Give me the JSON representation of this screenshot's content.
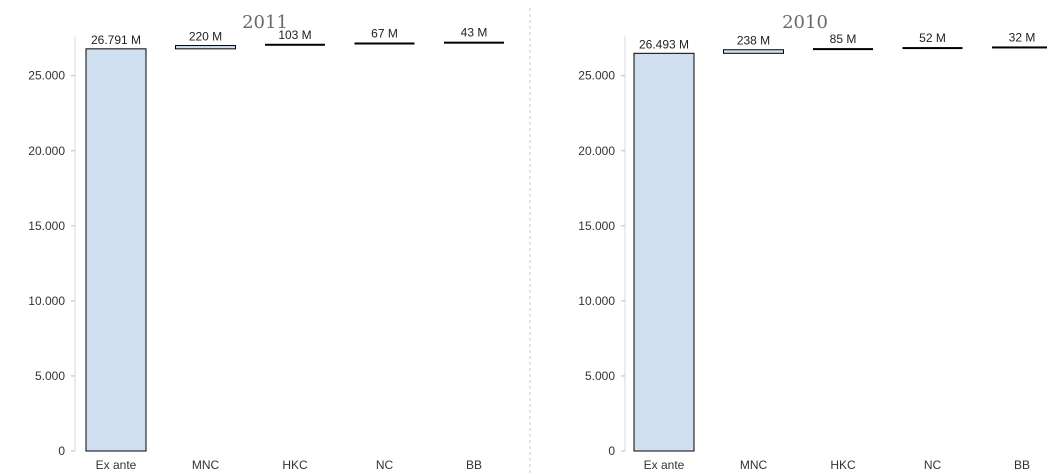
{
  "chart_data": [
    {
      "type": "bar",
      "subtype": "waterfall",
      "title": "2011",
      "categories": [
        "Ex ante",
        "MNC",
        "HKC",
        "NC",
        "BB"
      ],
      "values": [
        26791,
        220,
        103,
        67,
        43
      ],
      "data_labels": [
        "26.791 M",
        "220 M",
        "103 M",
        "67 M",
        "43 M"
      ],
      "ylim": [
        0,
        27500
      ],
      "yticks": [
        0,
        5000,
        10000,
        15000,
        20000,
        25000
      ],
      "ytick_labels": [
        "0",
        "5.000",
        "10.000",
        "15.000",
        "20.000",
        "25.000"
      ],
      "grid": false,
      "bar_color": "#d0dff0",
      "bar_edge": "#000000"
    },
    {
      "type": "bar",
      "subtype": "waterfall",
      "title": "2010",
      "categories": [
        "Ex ante",
        "MNC",
        "HKC",
        "NC",
        "BB"
      ],
      "values": [
        26493,
        238,
        85,
        52,
        32
      ],
      "data_labels": [
        "26.493 M",
        "238 M",
        "85 M",
        "52 M",
        "32 M"
      ],
      "ylim": [
        0,
        27500
      ],
      "yticks": [
        0,
        5000,
        10000,
        15000,
        20000,
        25000
      ],
      "ytick_labels": [
        "0",
        "5.000",
        "10.000",
        "15.000",
        "20.000",
        "25.000"
      ],
      "grid": false,
      "bar_color": "#d0dff0",
      "bar_edge": "#000000"
    }
  ],
  "divider_color": "#c8c8c8"
}
